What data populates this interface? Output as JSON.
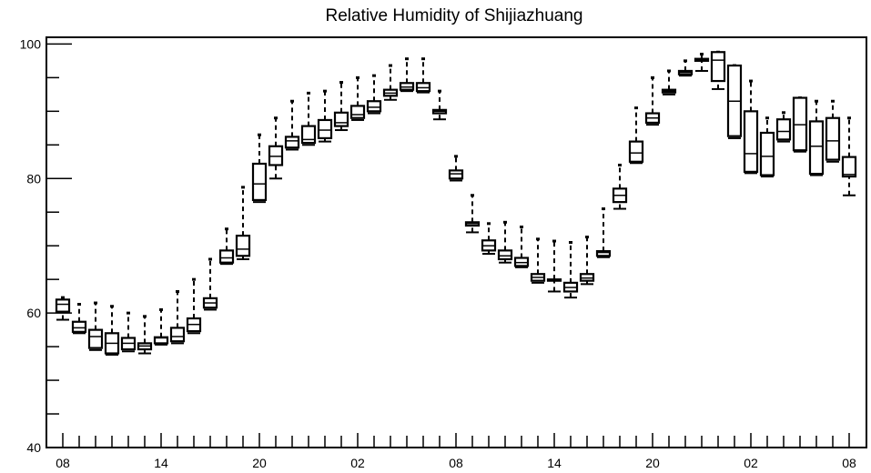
{
  "chart_data": {
    "type": "box",
    "title": "Relative Humidity of Shijiazhuang",
    "xlabel": "",
    "ylabel": "",
    "ylim": [
      40,
      101
    ],
    "yticks": [
      40,
      60,
      80,
      100
    ],
    "xtick_labels": [
      "08",
      "14",
      "20",
      "02",
      "08",
      "14",
      "20",
      "02",
      "08"
    ],
    "hours_per_major_tick": 6,
    "grid": false,
    "legend": "none",
    "boxes": [
      {
        "hour": 0,
        "min": 59.0,
        "q1": 60.2,
        "median": 61.3,
        "q3": 62.0,
        "max": 62.3
      },
      {
        "hour": 1,
        "min": 57.0,
        "q1": 57.2,
        "median": 57.8,
        "q3": 58.7,
        "max": 61.3
      },
      {
        "hour": 2,
        "min": 54.5,
        "q1": 54.8,
        "median": 56.5,
        "q3": 57.5,
        "max": 61.5
      },
      {
        "hour": 3,
        "min": 53.8,
        "q1": 54.0,
        "median": 55.5,
        "q3": 57.0,
        "max": 61.0
      },
      {
        "hour": 4,
        "min": 54.3,
        "q1": 54.6,
        "median": 55.5,
        "q3": 56.3,
        "max": 60.0
      },
      {
        "hour": 5,
        "min": 54.0,
        "q1": 54.6,
        "median": 55.1,
        "q3": 55.5,
        "max": 59.5
      },
      {
        "hour": 6,
        "min": 55.3,
        "q1": 55.5,
        "median": 56.3,
        "q3": 56.4,
        "max": 60.5
      },
      {
        "hour": 7,
        "min": 55.5,
        "q1": 55.8,
        "median": 56.5,
        "q3": 57.8,
        "max": 63.2
      },
      {
        "hour": 8,
        "min": 57.0,
        "q1": 57.3,
        "median": 58.3,
        "q3": 59.2,
        "max": 65.0
      },
      {
        "hour": 9,
        "min": 60.5,
        "q1": 60.8,
        "median": 61.5,
        "q3": 62.2,
        "max": 68.0
      },
      {
        "hour": 10,
        "min": 67.3,
        "q1": 67.5,
        "median": 68.2,
        "q3": 69.3,
        "max": 72.5
      },
      {
        "hour": 11,
        "min": 68.0,
        "q1": 68.5,
        "median": 69.5,
        "q3": 71.5,
        "max": 78.7
      },
      {
        "hour": 12,
        "min": 76.5,
        "q1": 76.8,
        "median": 79.2,
        "q3": 82.2,
        "max": 86.5
      },
      {
        "hour": 13,
        "min": 80.0,
        "q1": 82.0,
        "median": 83.3,
        "q3": 84.8,
        "max": 89.0
      },
      {
        "hour": 14,
        "min": 84.3,
        "q1": 84.6,
        "median": 85.6,
        "q3": 86.2,
        "max": 91.5
      },
      {
        "hour": 15,
        "min": 85.0,
        "q1": 85.3,
        "median": 85.8,
        "q3": 87.8,
        "max": 92.7
      },
      {
        "hour": 16,
        "min": 85.5,
        "q1": 86.0,
        "median": 87.2,
        "q3": 88.7,
        "max": 93.0
      },
      {
        "hour": 17,
        "min": 87.2,
        "q1": 87.8,
        "median": 88.3,
        "q3": 89.8,
        "max": 94.3
      },
      {
        "hour": 18,
        "min": 88.7,
        "q1": 89.0,
        "median": 89.5,
        "q3": 90.8,
        "max": 95.0
      },
      {
        "hour": 19,
        "min": 89.7,
        "q1": 90.0,
        "median": 90.6,
        "q3": 91.5,
        "max": 95.3
      },
      {
        "hour": 20,
        "min": 91.7,
        "q1": 92.3,
        "median": 92.7,
        "q3": 93.2,
        "max": 96.8
      },
      {
        "hour": 21,
        "min": 93.0,
        "q1": 93.2,
        "median": 93.6,
        "q3": 94.2,
        "max": 97.8
      },
      {
        "hour": 22,
        "min": 92.8,
        "q1": 93.0,
        "median": 93.5,
        "q3": 94.2,
        "max": 97.8
      },
      {
        "hour": 23,
        "min": 88.8,
        "q1": 89.7,
        "median": 90.0,
        "q3": 90.2,
        "max": 93.0
      },
      {
        "hour": 24,
        "min": 79.7,
        "q1": 80.0,
        "median": 80.7,
        "q3": 81.2,
        "max": 83.3
      },
      {
        "hour": 25,
        "min": 72.0,
        "q1": 73.0,
        "median": 73.3,
        "q3": 73.5,
        "max": 77.5
      },
      {
        "hour": 26,
        "min": 68.8,
        "q1": 69.3,
        "median": 70.0,
        "q3": 70.8,
        "max": 73.3
      },
      {
        "hour": 27,
        "min": 67.5,
        "q1": 68.0,
        "median": 68.5,
        "q3": 69.3,
        "max": 73.5
      },
      {
        "hour": 28,
        "min": 66.8,
        "q1": 67.0,
        "median": 67.5,
        "q3": 68.2,
        "max": 72.8
      },
      {
        "hour": 29,
        "min": 64.5,
        "q1": 64.8,
        "median": 65.3,
        "q3": 65.8,
        "max": 71.0
      },
      {
        "hour": 30,
        "min": 63.2,
        "q1": 64.8,
        "median": 64.9,
        "q3": 65.0,
        "max": 70.7
      },
      {
        "hour": 31,
        "min": 62.3,
        "q1": 63.2,
        "median": 63.8,
        "q3": 64.5,
        "max": 70.5
      },
      {
        "hour": 32,
        "min": 64.3,
        "q1": 64.8,
        "median": 65.2,
        "q3": 65.8,
        "max": 71.3
      },
      {
        "hour": 33,
        "min": 68.3,
        "q1": 68.5,
        "median": 69.0,
        "q3": 69.2,
        "max": 75.5
      },
      {
        "hour": 34,
        "min": 75.5,
        "q1": 76.5,
        "median": 77.5,
        "q3": 78.5,
        "max": 82.0
      },
      {
        "hour": 35,
        "min": 82.3,
        "q1": 82.5,
        "median": 83.8,
        "q3": 85.5,
        "max": 90.5
      },
      {
        "hour": 36,
        "min": 88.0,
        "q1": 88.3,
        "median": 89.0,
        "q3": 89.7,
        "max": 95.0
      },
      {
        "hour": 37,
        "min": 92.5,
        "q1": 92.8,
        "median": 93.0,
        "q3": 93.2,
        "max": 96.0
      },
      {
        "hour": 38,
        "min": 95.3,
        "q1": 95.5,
        "median": 95.8,
        "q3": 96.0,
        "max": 97.5
      },
      {
        "hour": 39,
        "min": 96.0,
        "q1": 97.5,
        "median": 97.6,
        "q3": 97.8,
        "max": 98.5
      },
      {
        "hour": 40,
        "min": 93.3,
        "q1": 94.5,
        "median": 97.6,
        "q3": 98.8,
        "max": 98.8
      },
      {
        "hour": 41,
        "min": 86.0,
        "q1": 86.3,
        "median": 91.5,
        "q3": 96.8,
        "max": 96.8
      },
      {
        "hour": 42,
        "min": 80.8,
        "q1": 81.0,
        "median": 83.7,
        "q3": 90.0,
        "max": 94.5
      },
      {
        "hour": 43,
        "min": 80.3,
        "q1": 80.5,
        "median": 83.3,
        "q3": 86.8,
        "max": 89.0
      },
      {
        "hour": 44,
        "min": 85.5,
        "q1": 85.8,
        "median": 87.0,
        "q3": 88.8,
        "max": 89.8
      },
      {
        "hour": 45,
        "min": 84.0,
        "q1": 84.2,
        "median": 88.0,
        "q3": 92.0,
        "max": 92.0
      },
      {
        "hour": 46,
        "min": 80.5,
        "q1": 80.7,
        "median": 84.8,
        "q3": 88.5,
        "max": 91.5
      },
      {
        "hour": 47,
        "min": 82.5,
        "q1": 82.8,
        "median": 85.6,
        "q3": 89.0,
        "max": 91.5
      },
      {
        "hour": 48,
        "min": 77.5,
        "q1": 80.3,
        "median": 80.6,
        "q3": 83.2,
        "max": 89.0
      }
    ]
  }
}
